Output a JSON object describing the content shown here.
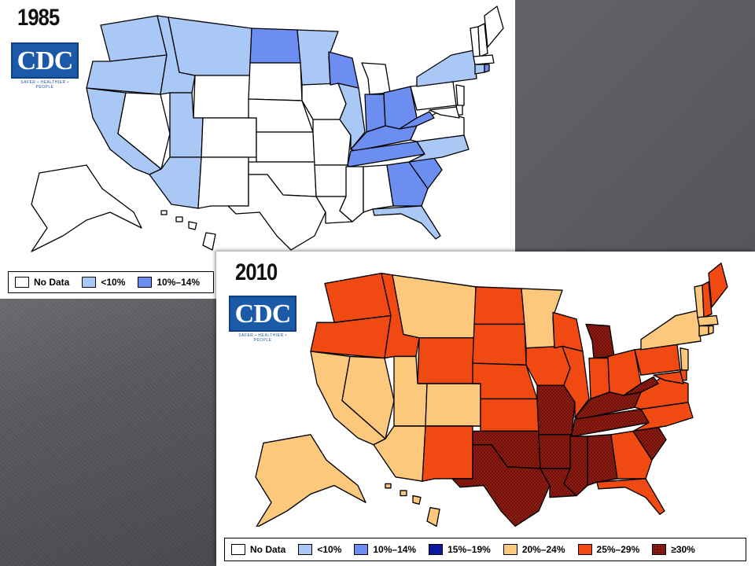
{
  "map_1985": {
    "year": "1985",
    "logo_text": "CDC",
    "logo_tagline": "SAFER • HEALTHIER • PEOPLE",
    "legend": [
      {
        "label": "No Data",
        "color": "#ffffff"
      },
      {
        "label": "<10%",
        "color": "#a9c8f5"
      },
      {
        "label": "10%–14%",
        "color": "#6b8ef0"
      }
    ]
  },
  "map_2010": {
    "year": "2010",
    "logo_text": "CDC",
    "logo_tagline": "SAFER • HEALTHIER • PEOPLE",
    "legend": [
      {
        "label": "No Data",
        "color": "#ffffff"
      },
      {
        "label": "<10%",
        "color": "#a9c8f5"
      },
      {
        "label": "10%–14%",
        "color": "#6b8ef0"
      },
      {
        "label": "15%–19%",
        "color": "#0a1a9c"
      },
      {
        "label": "20%–24%",
        "color": "#fbc87c"
      },
      {
        "label": "25%–29%",
        "color": "#f04a12"
      },
      {
        "label": "≥30%",
        "color": "#8c1a10"
      }
    ]
  }
}
